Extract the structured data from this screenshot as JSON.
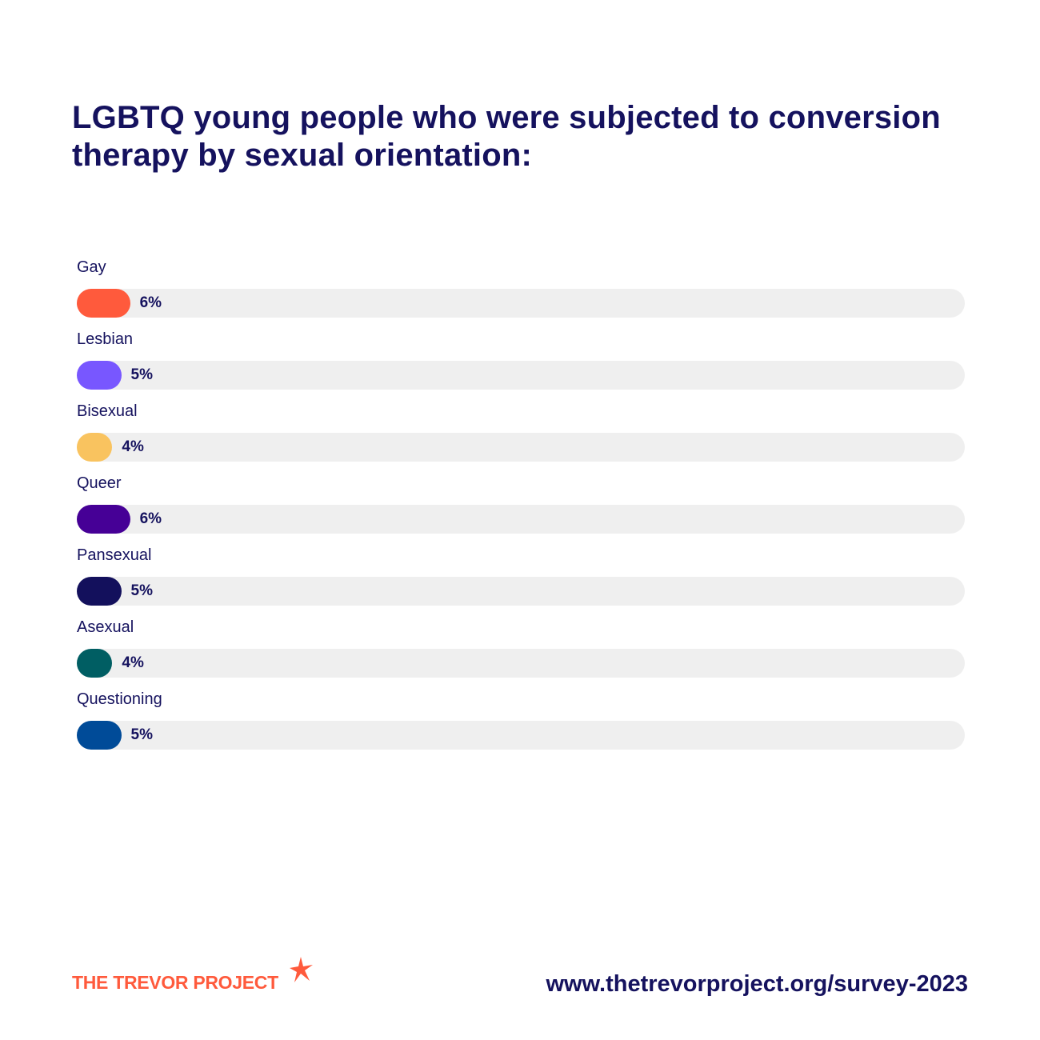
{
  "title": "LGBTQ young people who were subjected to conversion therapy by sexual orientation:",
  "chart_data": {
    "type": "bar",
    "orientation": "horizontal",
    "title": "LGBTQ young people who were subjected to conversion therapy by sexual orientation:",
    "xlabel": "",
    "ylabel": "",
    "xlim": [
      0,
      100
    ],
    "grid": false,
    "categories": [
      "Gay",
      "Lesbian",
      "Bisexual",
      "Queer",
      "Pansexual",
      "Asexual",
      "Questioning"
    ],
    "values": [
      6,
      5,
      4,
      6,
      5,
      4,
      5
    ],
    "value_labels": [
      "6%",
      "5%",
      "4%",
      "6%",
      "5%",
      "4%",
      "5%"
    ],
    "colors": [
      "#ff5a3c",
      "#7857ff",
      "#f9c35f",
      "#460096",
      "#13105c",
      "#005e63",
      "#004b98"
    ],
    "track_color": "#efefef"
  },
  "footer": {
    "logo_text": "THE TREVOR PROJECT",
    "logo_icon": "star-icon",
    "logo_color": "#ff5a3c",
    "url": "www.thetrevorproject.org/survey-2023"
  }
}
